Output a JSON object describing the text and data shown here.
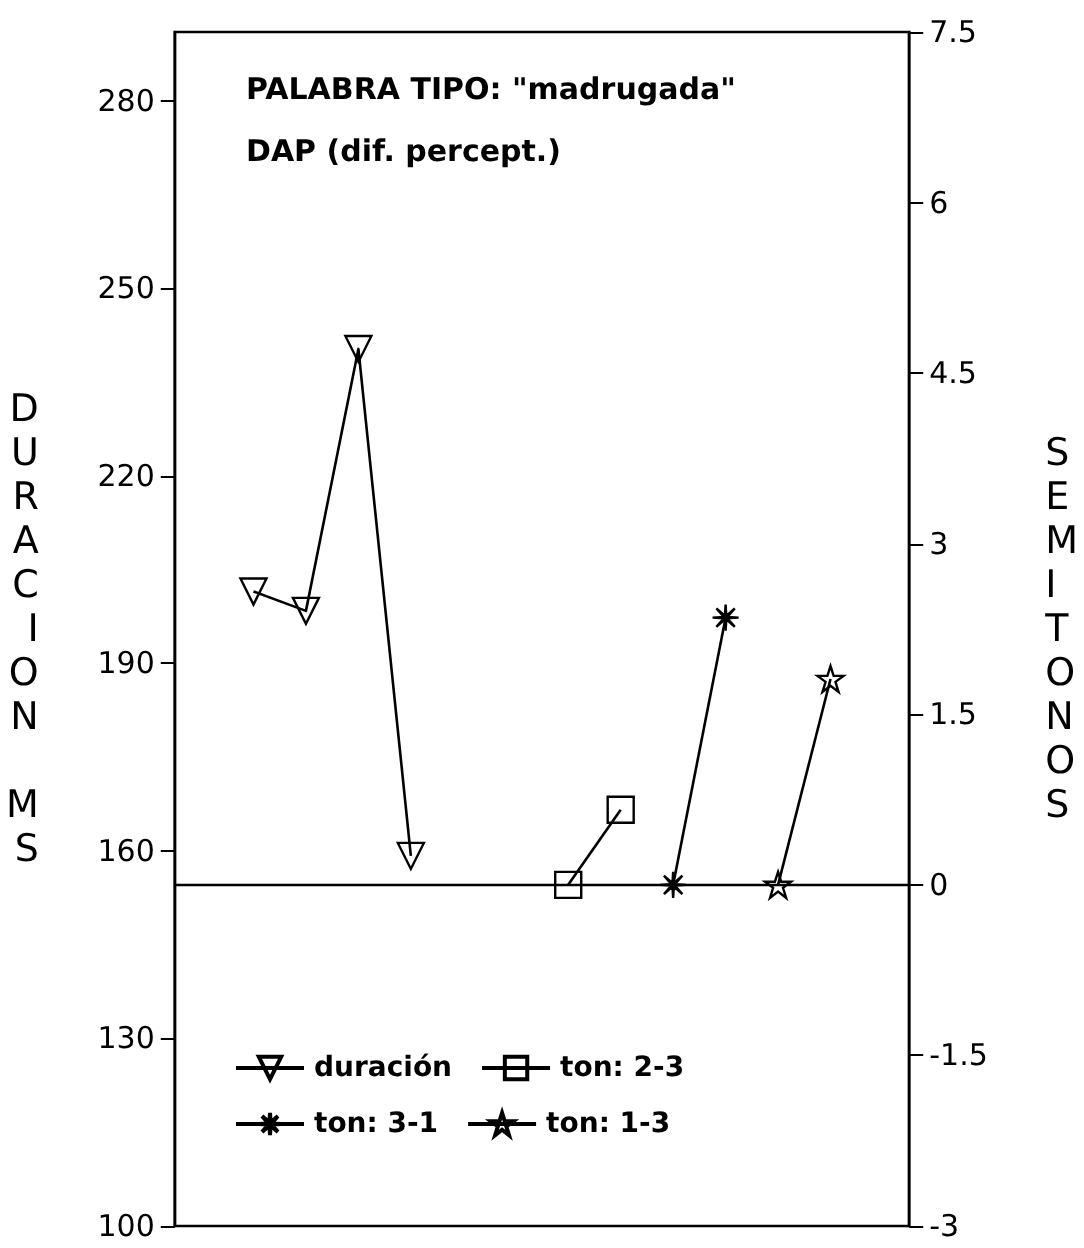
{
  "chart_data": {
    "type": "line",
    "title": "PALABRA TIPO: \"madrugada\"",
    "subtitle": "DAP (dif. percept.)",
    "ylabel": "DURACION MS",
    "y2label": "SEMITONOS",
    "categories": [
      null,
      null,
      null,
      null,
      null,
      null,
      null,
      null,
      null,
      null,
      null,
      null,
      null,
      null
    ],
    "series": [
      {
        "name": "duración",
        "color": "#000000",
        "marker": "triangle",
        "values": [
          null,
          201.5,
          198.4,
          240.3,
          159.2,
          null,
          null,
          null,
          null,
          null,
          null,
          null,
          null,
          null
        ]
      },
      {
        "name": "ton: 2-3",
        "color": "#000000",
        "marker": "square",
        "axis": "y2",
        "values": [
          null,
          null,
          null,
          null,
          null,
          null,
          null,
          0,
          0.66,
          null,
          null,
          null,
          null,
          null
        ]
      },
      {
        "name": "ton: 3-1",
        "color": "#000000",
        "marker": "cross",
        "axis": "y2",
        "values": [
          null,
          null,
          null,
          null,
          null,
          null,
          null,
          null,
          null,
          0,
          2.35,
          null,
          null,
          null
        ]
      },
      {
        "name": "ton: 1-3",
        "color": "#000000",
        "marker": "star",
        "axis": "y2",
        "values": [
          null,
          null,
          null,
          null,
          null,
          null,
          null,
          null,
          null,
          null,
          null,
          0,
          1.81,
          null
        ]
      }
    ],
    "ylim": [
      100,
      291
    ],
    "yticks": [
      100,
      130,
      160,
      190,
      220,
      250,
      280
    ],
    "y2lim": [
      -3,
      7.5
    ],
    "y2ticks": [
      -3,
      -1.5,
      0,
      1.5,
      3,
      4.5,
      6,
      7.5
    ],
    "ref_lines": [
      {
        "axis": "y2",
        "value": 0,
        "color": "#000000"
      }
    ],
    "tick_labels": "y",
    "grid": false,
    "legend": "bottom left",
    "line_style": "solid"
  }
}
